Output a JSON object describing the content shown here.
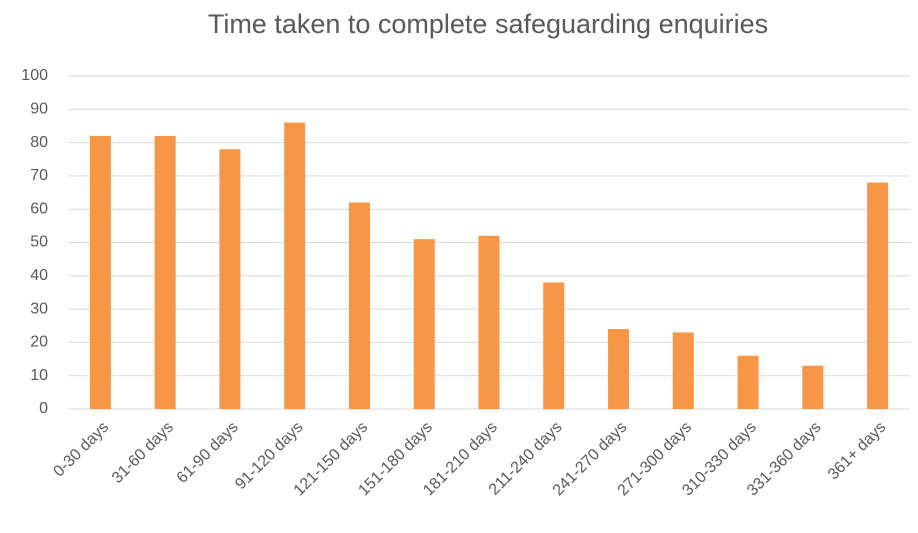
{
  "chart_data": {
    "type": "bar",
    "title": "Time taken to complete safeguarding enquiries",
    "categories": [
      "0-30 days",
      "31-60 days",
      "61-90 days",
      "91-120 days",
      "121-150 days",
      "151-180 days",
      "181-210 days",
      "211-240 days",
      "241-270 days",
      "271-300 days",
      "310-330 days",
      "331-360 days",
      "361+ days"
    ],
    "values": [
      82,
      82,
      78,
      86,
      62,
      51,
      52,
      38,
      24,
      23,
      16,
      13,
      68
    ],
    "color": "#f79646",
    "ylim": [
      0,
      100
    ],
    "yticks": [
      0,
      10,
      20,
      30,
      40,
      50,
      60,
      70,
      80,
      90,
      100
    ],
    "grid": true
  }
}
